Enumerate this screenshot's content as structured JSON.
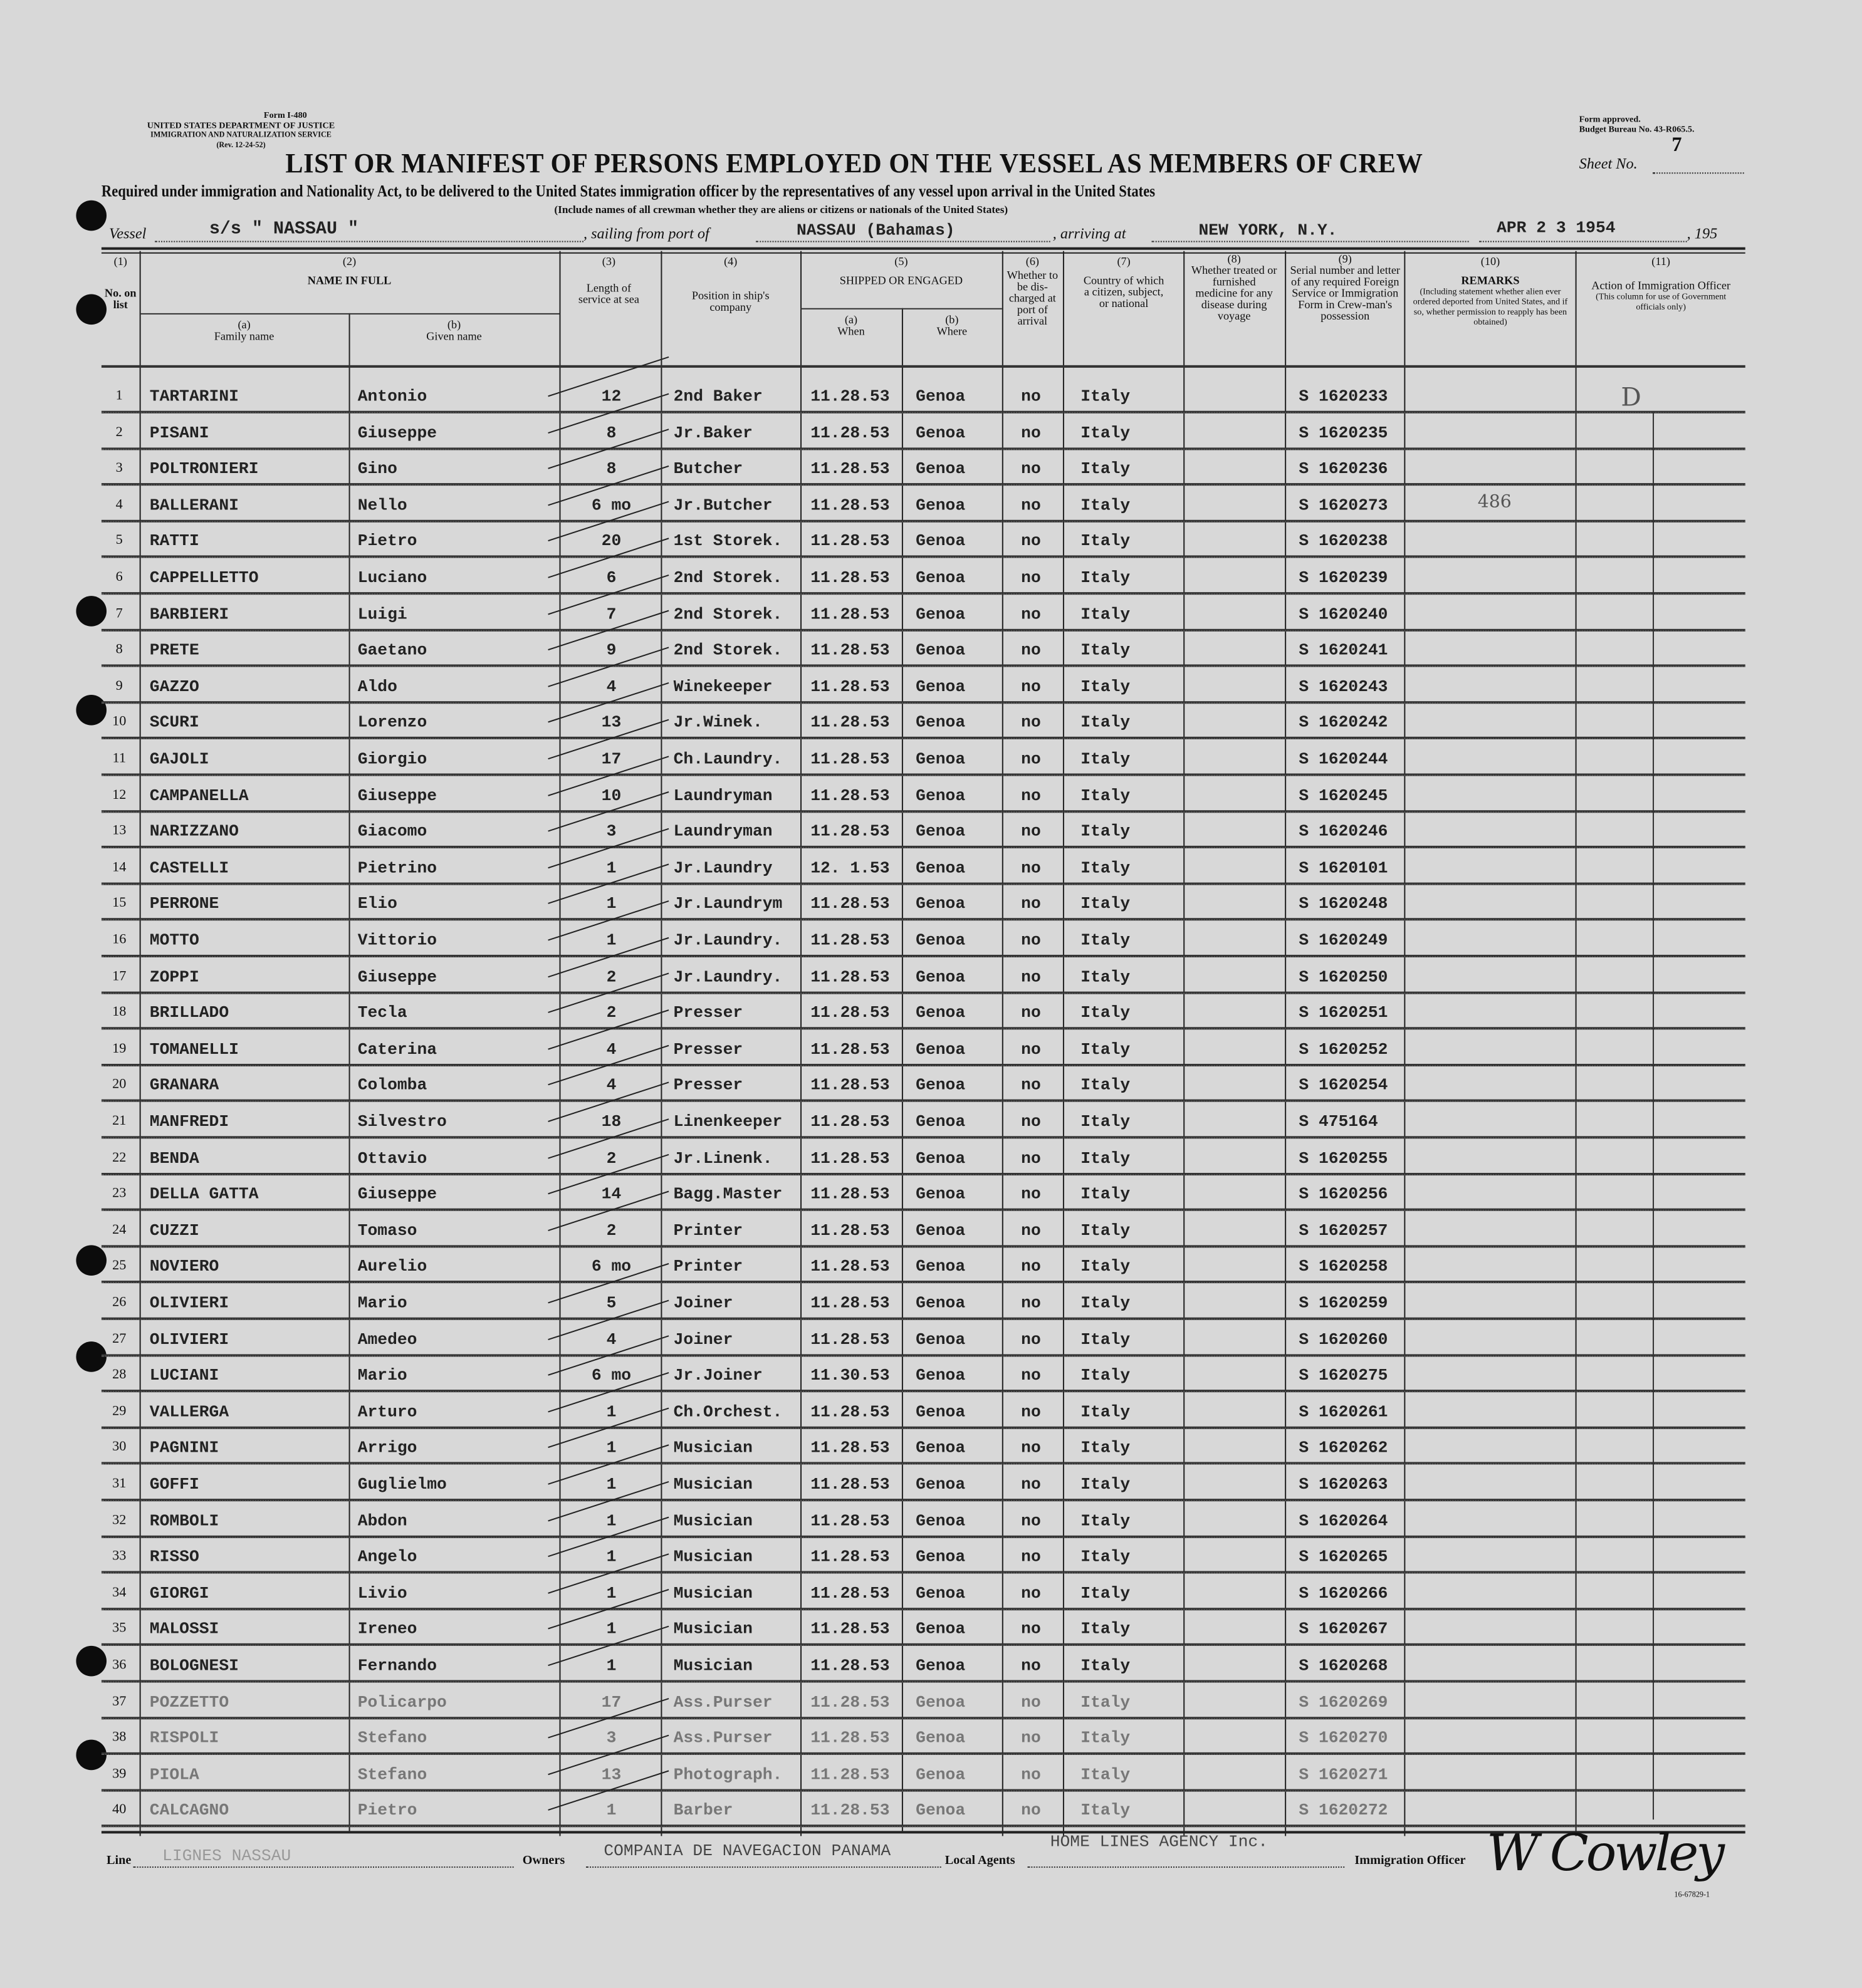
{
  "form": {
    "form_number": "Form I-480",
    "agency": "UNITED STATES DEPARTMENT OF JUSTICE",
    "service": "IMMIGRATION AND NATURALIZATION SERVICE",
    "revision": "(Rev. 12-24-52)",
    "approval": "Form approved.",
    "budget": "Budget Bureau No. 43-R065.5.",
    "sheet_label": "Sheet No.",
    "sheet_no": "7",
    "title": "LIST OR MANIFEST OF PERSONS EMPLOYED ON THE VESSEL AS MEMBERS OF CREW",
    "subtitle": "Required under immigration and Nationality Act, to be delivered to the United States immigration officer by the representatives of any vessel upon arrival in the United States",
    "note": "(Include names of all crewman whether they are aliens or citizens or nationals of the United States)"
  },
  "vessel": {
    "vessel_label": "Vessel",
    "vessel": "s/s \" NASSAU \"",
    "sailing_label": ", sailing from port of",
    "port": "NASSAU (Bahamas)",
    "arriving_label": ", arriving at",
    "arriving": "NEW YORK, N.Y.",
    "date": "APR 2 3 1954",
    "year_label": ", 195"
  },
  "columns": {
    "c1": "(1)",
    "c1_label": "No. on list",
    "c2": "(2)",
    "c2_label": "NAME IN FULL",
    "c2a": "(a)",
    "c2a_label": "Family name",
    "c2b": "(b)",
    "c2b_label": "Given name",
    "c3": "(3)",
    "c3_label": "Length of service at sea",
    "c4": "(4)",
    "c4_label": "Position in ship's company",
    "c5": "(5)",
    "c5_label": "SHIPPED OR ENGAGED",
    "c5a": "(a)",
    "c5a_label": "When",
    "c5b": "(b)",
    "c5b_label": "Where",
    "c6": "(6)",
    "c6_label": "Whether to be dis-charged at port of arrival",
    "c7": "(7)",
    "c7_label": "Country of which a citizen, subject, or national",
    "c8": "(8)",
    "c8_label": "Whether treated or furnished medicine for any disease during voyage",
    "c9": "(9)",
    "c9_label": "Serial number and letter of any required Foreign Service or Immigration Form in Crew-man's possession",
    "c10": "(10)",
    "c10_label": "REMARKS",
    "c10_note": "(Including statement whether alien ever ordered deported from United States, and if so, whether permission to reapply has been obtained)",
    "c11": "(11)",
    "c11_label": "Action of Immigration Officer",
    "c11_note": "(This column for use of Government officials only)"
  },
  "rows": [
    {
      "no": "1",
      "family": "TARTARINI",
      "given": "Antonio",
      "length": "12",
      "position": "2nd Baker",
      "when": "11.28.53",
      "where": "Genoa",
      "discharged": "no",
      "country": "Italy",
      "serial": "S 1620233",
      "remarks": "",
      "action": "D"
    },
    {
      "no": "2",
      "family": "PISANI",
      "given": "Giuseppe",
      "length": "8",
      "position": "Jr.Baker",
      "when": "11.28.53",
      "where": "Genoa",
      "discharged": "no",
      "country": "Italy",
      "serial": "S 1620235",
      "remarks": "",
      "action": ""
    },
    {
      "no": "3",
      "family": "POLTRONIERI",
      "given": "Gino",
      "length": "8",
      "position": "Butcher",
      "when": "11.28.53",
      "where": "Genoa",
      "discharged": "no",
      "country": "Italy",
      "serial": "S 1620236",
      "remarks": "",
      "action": ""
    },
    {
      "no": "4",
      "family": "BALLERANI",
      "given": "Nello",
      "length": "6 mo",
      "position": "Jr.Butcher",
      "when": "11.28.53",
      "where": "Genoa",
      "discharged": "no",
      "country": "Italy",
      "serial": "S 1620273",
      "remarks": "486",
      "action": ""
    },
    {
      "no": "5",
      "family": "RATTI",
      "given": "Pietro",
      "length": "20",
      "position": "1st Storek.",
      "when": "11.28.53",
      "where": "Genoa",
      "discharged": "no",
      "country": "Italy",
      "serial": "S 1620238",
      "remarks": "",
      "action": ""
    },
    {
      "no": "6",
      "family": "CAPPELLETTO",
      "given": "Luciano",
      "length": "6",
      "position": "2nd Storek.",
      "when": "11.28.53",
      "where": "Genoa",
      "discharged": "no",
      "country": "Italy",
      "serial": "S 1620239",
      "remarks": "",
      "action": ""
    },
    {
      "no": "7",
      "family": "BARBIERI",
      "given": "Luigi",
      "length": "7",
      "position": "2nd Storek.",
      "when": "11.28.53",
      "where": "Genoa",
      "discharged": "no",
      "country": "Italy",
      "serial": "S 1620240",
      "remarks": "",
      "action": ""
    },
    {
      "no": "8",
      "family": "PRETE",
      "given": "Gaetano",
      "length": "9",
      "position": "2nd Storek.",
      "when": "11.28.53",
      "where": "Genoa",
      "discharged": "no",
      "country": "Italy",
      "serial": "S 1620241",
      "remarks": "",
      "action": ""
    },
    {
      "no": "9",
      "family": "GAZZO",
      "given": "Aldo",
      "length": "4",
      "position": "Winekeeper",
      "when": "11.28.53",
      "where": "Genoa",
      "discharged": "no",
      "country": "Italy",
      "serial": "S 1620243",
      "remarks": "",
      "action": ""
    },
    {
      "no": "10",
      "family": "SCURI",
      "given": "Lorenzo",
      "length": "13",
      "position": "Jr.Winek.",
      "when": "11.28.53",
      "where": "Genoa",
      "discharged": "no",
      "country": "Italy",
      "serial": "S 1620242",
      "remarks": "",
      "action": ""
    },
    {
      "no": "11",
      "family": "GAJOLI",
      "given": "Giorgio",
      "length": "17",
      "position": "Ch.Laundry.",
      "when": "11.28.53",
      "where": "Genoa",
      "discharged": "no",
      "country": "Italy",
      "serial": "S 1620244",
      "remarks": "",
      "action": ""
    },
    {
      "no": "12",
      "family": "CAMPANELLA",
      "given": "Giuseppe",
      "length": "10",
      "position": "Laundryman",
      "when": "11.28.53",
      "where": "Genoa",
      "discharged": "no",
      "country": "Italy",
      "serial": "S 1620245",
      "remarks": "",
      "action": ""
    },
    {
      "no": "13",
      "family": "NARIZZANO",
      "given": "Giacomo",
      "length": "3",
      "position": "Laundryman",
      "when": "11.28.53",
      "where": "Genoa",
      "discharged": "no",
      "country": "Italy",
      "serial": "S 1620246",
      "remarks": "",
      "action": ""
    },
    {
      "no": "14",
      "family": "CASTELLI",
      "given": "Pietrino",
      "length": "1",
      "position": "Jr.Laundry",
      "when": "12. 1.53",
      "where": "Genoa",
      "discharged": "no",
      "country": "Italy",
      "serial": "S 1620101",
      "remarks": "",
      "action": ""
    },
    {
      "no": "15",
      "family": "PERRONE",
      "given": "Elio",
      "length": "1",
      "position": "Jr.Laundrym",
      "when": "11.28.53",
      "where": "Genoa",
      "discharged": "no",
      "country": "Italy",
      "serial": "S 1620248",
      "remarks": "",
      "action": ""
    },
    {
      "no": "16",
      "family": "MOTTO",
      "given": "Vittorio",
      "length": "1",
      "position": "Jr.Laundry.",
      "when": "11.28.53",
      "where": "Genoa",
      "discharged": "no",
      "country": "Italy",
      "serial": "S 1620249",
      "remarks": "",
      "action": ""
    },
    {
      "no": "17",
      "family": "ZOPPI",
      "given": "Giuseppe",
      "length": "2",
      "position": "Jr.Laundry.",
      "when": "11.28.53",
      "where": "Genoa",
      "discharged": "no",
      "country": "Italy",
      "serial": "S 1620250",
      "remarks": "",
      "action": ""
    },
    {
      "no": "18",
      "family": "BRILLADO",
      "given": "Tecla",
      "length": "2",
      "position": "Presser",
      "when": "11.28.53",
      "where": "Genoa",
      "discharged": "no",
      "country": "Italy",
      "serial": "S 1620251",
      "remarks": "",
      "action": ""
    },
    {
      "no": "19",
      "family": "TOMANELLI",
      "given": "Caterina",
      "length": "4",
      "position": "Presser",
      "when": "11.28.53",
      "where": "Genoa",
      "discharged": "no",
      "country": "Italy",
      "serial": "S 1620252",
      "remarks": "",
      "action": ""
    },
    {
      "no": "20",
      "family": "GRANARA",
      "given": "Colomba",
      "length": "4",
      "position": "Presser",
      "when": "11.28.53",
      "where": "Genoa",
      "discharged": "no",
      "country": "Italy",
      "serial": "S 1620254",
      "remarks": "",
      "action": ""
    },
    {
      "no": "21",
      "family": "MANFREDI",
      "given": "Silvestro",
      "length": "18",
      "position": "Linenkeeper",
      "when": "11.28.53",
      "where": "Genoa",
      "discharged": "no",
      "country": "Italy",
      "serial": "S 475164",
      "remarks": "",
      "action": ""
    },
    {
      "no": "22",
      "family": "BENDA",
      "given": "Ottavio",
      "length": "2",
      "position": "Jr.Linenk.",
      "when": "11.28.53",
      "where": "Genoa",
      "discharged": "no",
      "country": "Italy",
      "serial": "S 1620255",
      "remarks": "",
      "action": ""
    },
    {
      "no": "23",
      "family": "DELLA GATTA",
      "given": "Giuseppe",
      "length": "14",
      "position": "Bagg.Master",
      "when": "11.28.53",
      "where": "Genoa",
      "discharged": "no",
      "country": "Italy",
      "serial": "S 1620256",
      "remarks": "",
      "action": ""
    },
    {
      "no": "24",
      "family": "CUZZI",
      "given": "Tomaso",
      "length": "2",
      "position": "Printer",
      "when": "11.28.53",
      "where": "Genoa",
      "discharged": "no",
      "country": "Italy",
      "serial": "S 1620257",
      "remarks": "",
      "action": ""
    },
    {
      "no": "25",
      "family": "NOVIERO",
      "given": "Aurelio",
      "length": "6 mo",
      "position": "Printer",
      "when": "11.28.53",
      "where": "Genoa",
      "discharged": "no",
      "country": "Italy",
      "serial": "S 1620258",
      "remarks": "",
      "action": ""
    },
    {
      "no": "26",
      "family": "OLIVIERI",
      "given": "Mario",
      "length": "5",
      "position": "Joiner",
      "when": "11.28.53",
      "where": "Genoa",
      "discharged": "no",
      "country": "Italy",
      "serial": "S 1620259",
      "remarks": "",
      "action": ""
    },
    {
      "no": "27",
      "family": "OLIVIERI",
      "given": "Amedeo",
      "length": "4",
      "position": "Joiner",
      "when": "11.28.53",
      "where": "Genoa",
      "discharged": "no",
      "country": "Italy",
      "serial": "S 1620260",
      "remarks": "",
      "action": ""
    },
    {
      "no": "28",
      "family": "LUCIANI",
      "given": "Mario",
      "length": "6 mo",
      "position": "Jr.Joiner",
      "when": "11.30.53",
      "where": "Genoa",
      "discharged": "no",
      "country": "Italy",
      "serial": "S 1620275",
      "remarks": "",
      "action": ""
    },
    {
      "no": "29",
      "family": "VALLERGA",
      "given": "Arturo",
      "length": "1",
      "position": "Ch.Orchest.",
      "when": "11.28.53",
      "where": "Genoa",
      "discharged": "no",
      "country": "Italy",
      "serial": "S 1620261",
      "remarks": "",
      "action": ""
    },
    {
      "no": "30",
      "family": "PAGNINI",
      "given": "Arrigo",
      "length": "1",
      "position": "Musician",
      "when": "11.28.53",
      "where": "Genoa",
      "discharged": "no",
      "country": "Italy",
      "serial": "S 1620262",
      "remarks": "",
      "action": ""
    },
    {
      "no": "31",
      "family": "GOFFI",
      "given": "Guglielmo",
      "length": "1",
      "position": "Musician",
      "when": "11.28.53",
      "where": "Genoa",
      "discharged": "no",
      "country": "Italy",
      "serial": "S 1620263",
      "remarks": "",
      "action": ""
    },
    {
      "no": "32",
      "family": "ROMBOLI",
      "given": "Abdon",
      "length": "1",
      "position": "Musician",
      "when": "11.28.53",
      "where": "Genoa",
      "discharged": "no",
      "country": "Italy",
      "serial": "S 1620264",
      "remarks": "",
      "action": ""
    },
    {
      "no": "33",
      "family": "RISSO",
      "given": "Angelo",
      "length": "1",
      "position": "Musician",
      "when": "11.28.53",
      "where": "Genoa",
      "discharged": "no",
      "country": "Italy",
      "serial": "S 1620265",
      "remarks": "",
      "action": ""
    },
    {
      "no": "34",
      "family": "GIORGI",
      "given": "Livio",
      "length": "1",
      "position": "Musician",
      "when": "11.28.53",
      "where": "Genoa",
      "discharged": "no",
      "country": "Italy",
      "serial": "S 1620266",
      "remarks": "",
      "action": ""
    },
    {
      "no": "35",
      "family": "MALOSSI",
      "given": "Ireneo",
      "length": "1",
      "position": "Musician",
      "when": "11.28.53",
      "where": "Genoa",
      "discharged": "no",
      "country": "Italy",
      "serial": "S 1620267",
      "remarks": "",
      "action": ""
    },
    {
      "no": "36",
      "family": "BOLOGNESI",
      "given": "Fernando",
      "length": "1",
      "position": "Musician",
      "when": "11.28.53",
      "where": "Genoa",
      "discharged": "no",
      "country": "Italy",
      "serial": "S 1620268",
      "remarks": "",
      "action": ""
    },
    {
      "no": "37",
      "family": "POZZETTO",
      "given": "Policarpo",
      "length": "17",
      "position": "Ass.Purser",
      "when": "11.28.53",
      "where": "Genoa",
      "discharged": "no",
      "country": "Italy",
      "serial": "S 1620269",
      "remarks": "",
      "action": ""
    },
    {
      "no": "38",
      "family": "RISPOLI",
      "given": "Stefano",
      "length": "3",
      "position": "Ass.Purser",
      "when": "11.28.53",
      "where": "Genoa",
      "discharged": "no",
      "country": "Italy",
      "serial": "S 1620270",
      "remarks": "",
      "action": ""
    },
    {
      "no": "39",
      "family": "PIOLA",
      "given": "Stefano",
      "length": "13",
      "position": "Photograph.",
      "when": "11.28.53",
      "where": "Genoa",
      "discharged": "no",
      "country": "Italy",
      "serial": "S 1620271",
      "remarks": "",
      "action": ""
    },
    {
      "no": "40",
      "family": "CALCAGNO",
      "given": "Pietro",
      "length": "1",
      "position": "Barber",
      "when": "11.28.53",
      "where": "Genoa",
      "discharged": "no",
      "country": "Italy",
      "serial": "S 1620272",
      "remarks": "",
      "action": ""
    }
  ],
  "footer": {
    "line_label": "Line",
    "line": "LIGNES NASSAU",
    "owners_label": "Owners",
    "owners": "COMPANIA DE NAVEGACION PANAMA",
    "agents_label": "Local Agents",
    "agents": "HOME LINES AGENCY Inc.",
    "officer_label": "Immigration Officer",
    "signature": "W Cowley",
    "print_code": "16-67829-1"
  }
}
